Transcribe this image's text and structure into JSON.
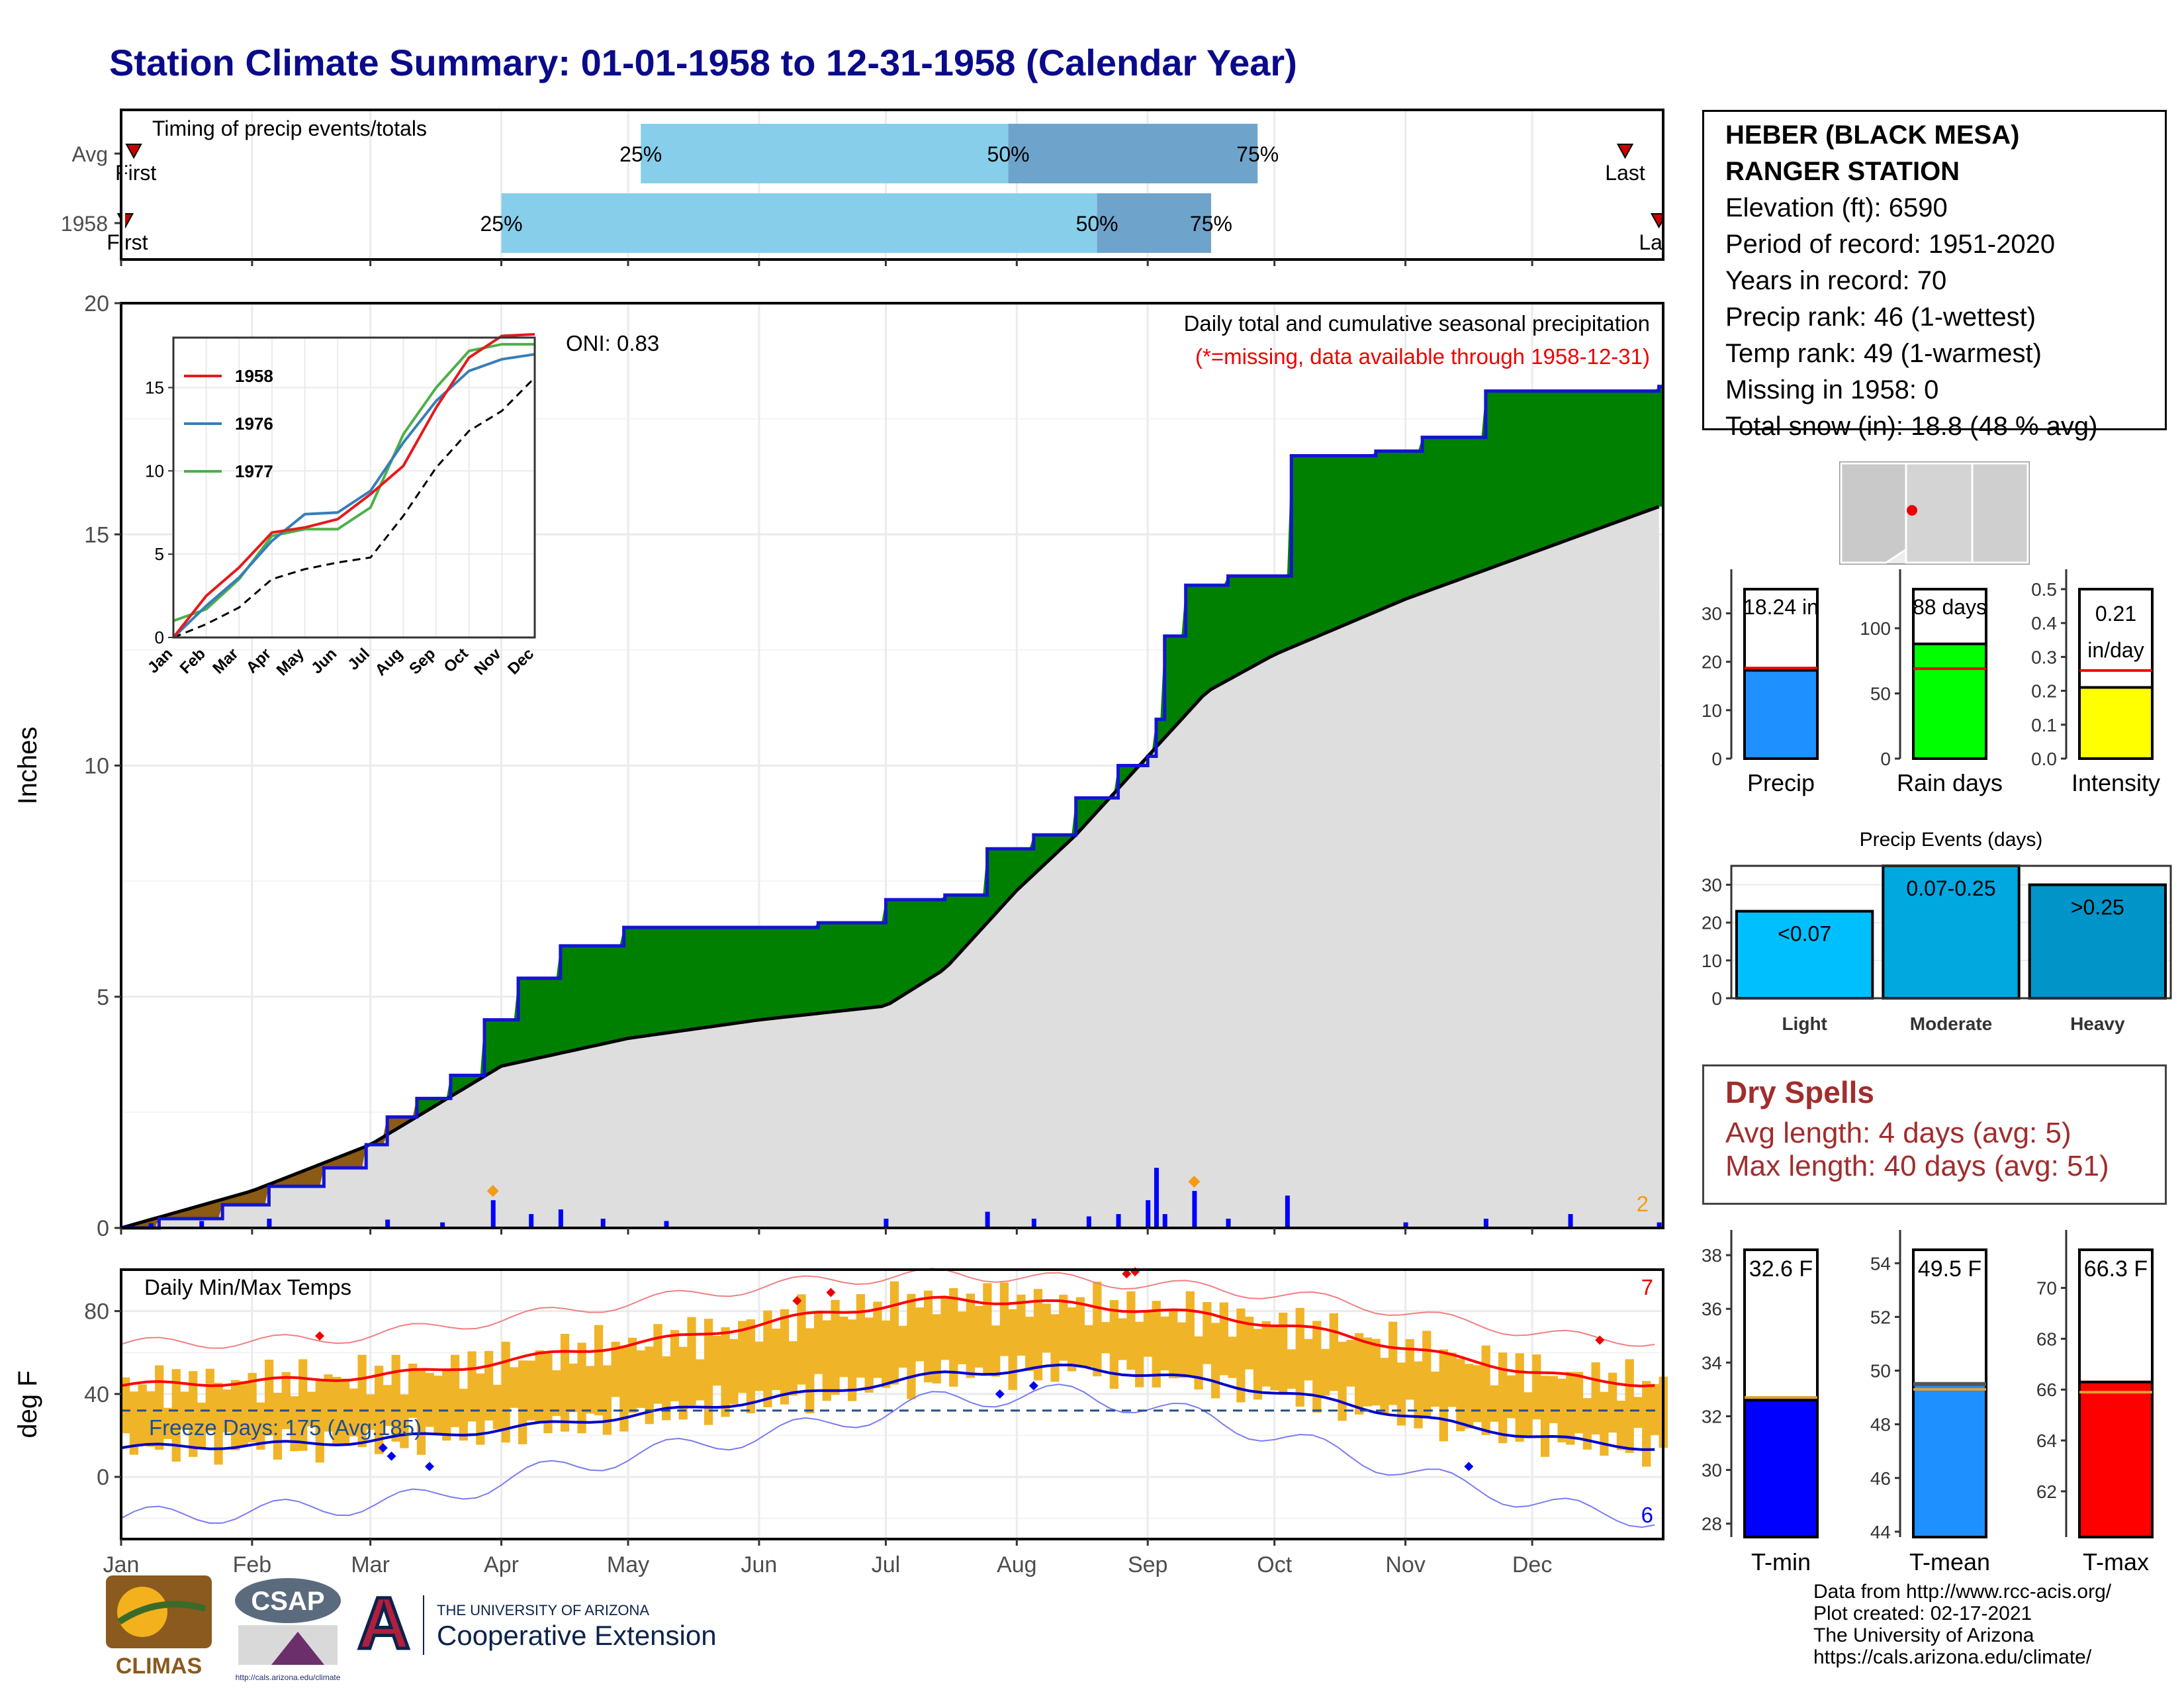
{
  "title": "Station Climate Summary: 01-01-1958 to 12-31-1958 (Calendar Year)",
  "station": {
    "name_line1": "HEBER (BLACK MESA)",
    "name_line2": "RANGER STATION",
    "elevation": "Elevation (ft): 6590",
    "period": "Period of record: 1951-2020",
    "years": "Years in record: 70",
    "precip_rank": "Precip rank: 46 (1-wettest)",
    "temp_rank": "Temp rank: 49 (1-warmest)",
    "missing": "Missing in 1958: 0",
    "snow": "Total snow (in): 18.8 (48 % avg)"
  },
  "timing": {
    "title": "Timing of precip events/totals",
    "rows": [
      "Avg",
      "1958"
    ],
    "first_label": "First",
    "last_label": "Last",
    "avg": {
      "first": "Jan 4",
      "p25": "May 4",
      "p50": "Jul 30",
      "p75": "Sep 27",
      "last": "Dec 23"
    },
    "y1958": {
      "first": "Jan 2",
      "p25": "Apr 1",
      "p50": "Aug 20",
      "p75": "Sep 16",
      "last": "Dec 31"
    },
    "pct_labels": [
      "25%",
      "50%",
      "75%"
    ]
  },
  "main_chart": {
    "ylabel": "Inches",
    "yticks": [
      "0",
      "5",
      "10",
      "15",
      "20"
    ],
    "months": [
      "Jan",
      "Feb",
      "Mar",
      "Apr",
      "May",
      "Jun",
      "Jul",
      "Aug",
      "Sep",
      "Oct",
      "Nov",
      "Dec"
    ],
    "label_right": "Daily total and cumulative seasonal precipitation",
    "label_missing": "(*=missing, data available through 1958-12-31)",
    "oni": "ONI: 0.83",
    "corner_count": "2"
  },
  "inset": {
    "legend": [
      "1958",
      "1976",
      "1977"
    ],
    "yticks": [
      "0",
      "5",
      "10",
      "15"
    ],
    "months": [
      "Jan",
      "Feb",
      "Mar",
      "Apr",
      "May",
      "Jun",
      "Jul",
      "Aug",
      "Sep",
      "Oct",
      "Nov",
      "Dec"
    ]
  },
  "temp_chart": {
    "ylabel": "deg F",
    "title": "Daily Min/Max Temps",
    "yticks": [
      "0",
      "40",
      "80"
    ],
    "freeze": "Freeze Days: 175 (Avg:185)",
    "count_hot": "7",
    "count_cold": "6"
  },
  "summary_bars": {
    "precip": {
      "label": "Precip",
      "value_text": "18.24 in",
      "yticks": [
        "0",
        "10",
        "20",
        "30"
      ]
    },
    "rain_days": {
      "label": "Rain days",
      "value_text": "88 days",
      "yticks": [
        "0",
        "50",
        "100"
      ]
    },
    "intensity": {
      "label": "Intensity",
      "value_text": "0.21",
      "value_unit": "in/day",
      "yticks": [
        "0.0",
        "0.1",
        "0.2",
        "0.3",
        "0.4",
        "0.5"
      ]
    }
  },
  "events": {
    "title": "Precip Events (days)",
    "yticks": [
      "0",
      "10",
      "20",
      "30"
    ],
    "cats": [
      "Light",
      "Moderate",
      "Heavy"
    ],
    "labels": [
      "<0.07",
      "0.07-0.25",
      ">0.25"
    ]
  },
  "dry_spells": {
    "title": "Dry Spells",
    "avg": "Avg length: 4 days (avg: 5)",
    "max": "Max length: 40 days (avg: 51)"
  },
  "temp_bars": {
    "tmin": {
      "label": "T-min",
      "value_text": "32.6 F",
      "yticks": [
        "28",
        "30",
        "32",
        "34",
        "36",
        "38"
      ]
    },
    "tmean": {
      "label": "T-mean",
      "value_text": "49.5 F",
      "yticks": [
        "44",
        "46",
        "48",
        "50",
        "52",
        "54"
      ]
    },
    "tmax": {
      "label": "T-max",
      "value_text": "66.3 F",
      "yticks": [
        "62",
        "64",
        "66",
        "68",
        "70"
      ]
    }
  },
  "logos": {
    "climas": "CLIMAS",
    "csap": "CSAP",
    "csap_url": "http://cals.arizona.edu/climate",
    "ua_small": "THE UNIVERSITY OF ARIZONA",
    "ua_big": "Cooperative Extension",
    "ua_letter": "A"
  },
  "credits": [
    "Data from http://www.rcc-acis.org/",
    "Plot created: 02-17-2021",
    "The University of Arizona",
    "https://cals.arizona.edu/climate/"
  ],
  "chart_data": [
    {
      "type": "area",
      "title": "Daily total and cumulative seasonal precipitation",
      "ylabel": "Inches",
      "ylim": [
        0,
        20
      ],
      "series": [
        {
          "name": "1958",
          "x": [
            "01-01",
            "01-10",
            "01-25",
            "02-05",
            "02-18",
            "02-28",
            "03-05",
            "03-12",
            "03-20",
            "03-28",
            "04-05",
            "04-15",
            "04-30",
            "05-15",
            "06-15",
            "07-01",
            "07-15",
            "07-25",
            "08-05",
            "08-15",
            "08-25",
            "09-01",
            "09-03",
            "09-05",
            "09-10",
            "09-20",
            "10-05",
            "10-25",
            "11-05",
            "11-20",
            "12-15",
            "12-31"
          ],
          "values": [
            0,
            0.2,
            0.5,
            0.9,
            1.3,
            1.8,
            2.4,
            2.8,
            3.3,
            4.5,
            5.4,
            6.1,
            6.5,
            6.5,
            6.6,
            7.1,
            7.2,
            8.2,
            8.5,
            9.3,
            10.0,
            10.2,
            11.0,
            12.8,
            13.9,
            14.1,
            16.7,
            16.8,
            17.1,
            18.1,
            18.1,
            18.2
          ]
        },
        {
          "name": "Avg",
          "x": [
            "01-01",
            "02-01",
            "03-01",
            "04-01",
            "05-01",
            "06-01",
            "07-01",
            "07-15",
            "08-01",
            "08-15",
            "09-01",
            "09-15",
            "10-01",
            "11-01",
            "12-01",
            "12-31"
          ],
          "values": [
            0,
            0.8,
            1.8,
            3.5,
            4.1,
            4.5,
            4.8,
            5.6,
            7.3,
            8.5,
            10.2,
            11.6,
            12.4,
            13.6,
            14.6,
            15.6
          ]
        }
      ],
      "daily_bars": [
        {
          "x": "01-08",
          "v": 0.1
        },
        {
          "x": "01-20",
          "v": 0.15
        },
        {
          "x": "02-05",
          "v": 0.2
        },
        {
          "x": "03-05",
          "v": 0.18
        },
        {
          "x": "03-18",
          "v": 0.12
        },
        {
          "x": "03-30",
          "v": 0.6
        },
        {
          "x": "04-08",
          "v": 0.3
        },
        {
          "x": "04-15",
          "v": 0.4
        },
        {
          "x": "04-25",
          "v": 0.2
        },
        {
          "x": "05-10",
          "v": 0.15
        },
        {
          "x": "07-01",
          "v": 0.2
        },
        {
          "x": "07-25",
          "v": 0.35
        },
        {
          "x": "08-05",
          "v": 0.2
        },
        {
          "x": "08-18",
          "v": 0.25
        },
        {
          "x": "08-25",
          "v": 0.3
        },
        {
          "x": "09-01",
          "v": 0.6
        },
        {
          "x": "09-03",
          "v": 1.3
        },
        {
          "x": "09-05",
          "v": 0.3
        },
        {
          "x": "09-12",
          "v": 0.8
        },
        {
          "x": "09-20",
          "v": 0.2
        },
        {
          "x": "10-04",
          "v": 0.7
        },
        {
          "x": "11-01",
          "v": 0.12
        },
        {
          "x": "11-20",
          "v": 0.2
        },
        {
          "x": "12-10",
          "v": 0.3
        },
        {
          "x": "12-31",
          "v": 0.12
        }
      ]
    },
    {
      "type": "line",
      "title": "",
      "xlabel": "",
      "ylim": [
        0,
        18
      ],
      "categories": [
        "Jan",
        "Feb",
        "Mar",
        "Apr",
        "May",
        "Jun",
        "Jul",
        "Aug",
        "Sep",
        "Oct",
        "Nov",
        "Dec"
      ],
      "series": [
        {
          "name": "1958",
          "values": [
            0,
            2.5,
            4.2,
            6.3,
            6.6,
            7.1,
            8.6,
            10.3,
            13.8,
            16.8,
            18.1,
            18.2
          ]
        },
        {
          "name": "1976",
          "values": [
            0,
            1.9,
            3.6,
            5.8,
            7.4,
            7.5,
            8.8,
            11.7,
            14.2,
            16.0,
            16.7,
            17.0
          ]
        },
        {
          "name": "1977",
          "values": [
            1.0,
            1.7,
            3.5,
            6.1,
            6.5,
            6.5,
            7.8,
            12.2,
            15.0,
            17.2,
            17.6,
            17.6
          ]
        },
        {
          "name": "Avg",
          "values": [
            0,
            0.8,
            1.8,
            3.5,
            4.1,
            4.5,
            4.8,
            7.3,
            10.2,
            12.4,
            13.6,
            15.6
          ]
        }
      ]
    },
    {
      "type": "line",
      "title": "Daily Min/Max Temps",
      "ylabel": "deg F",
      "ylim": [
        -30,
        100
      ],
      "categories": [
        "Jan",
        "Feb",
        "Mar",
        "Apr",
        "May",
        "Jun",
        "Jul",
        "Aug",
        "Sep",
        "Oct",
        "Nov",
        "Dec",
        "Dec31"
      ],
      "series": [
        {
          "name": "Avg max",
          "values": [
            44,
            47,
            51,
            60,
            68,
            79,
            86,
            83,
            78,
            69,
            56,
            46,
            45
          ]
        },
        {
          "name": "Avg min",
          "values": [
            14,
            16,
            20,
            26,
            33,
            41,
            50,
            53,
            46,
            36,
            24,
            16,
            14
          ]
        },
        {
          "name": "Record max",
          "values": [
            64,
            66,
            72,
            80,
            88,
            95,
            98,
            95,
            91,
            85,
            74,
            66,
            66
          ]
        },
        {
          "name": "Record min",
          "values": [
            -20,
            -15,
            -10,
            5,
            15,
            25,
            38,
            40,
            28,
            12,
            -5,
            -18,
            -20
          ]
        }
      ],
      "freeze_line": 32
    },
    {
      "type": "bar",
      "title": "",
      "categories": [
        "Precip"
      ],
      "values": [
        18.24
      ],
      "avg": [
        18.7
      ],
      "ylim": [
        0,
        35
      ]
    },
    {
      "type": "bar",
      "title": "",
      "categories": [
        "Rain days"
      ],
      "values": [
        88
      ],
      "avg": [
        69
      ],
      "ylim": [
        0,
        130
      ]
    },
    {
      "type": "bar",
      "title": "",
      "categories": [
        "Intensity"
      ],
      "values": [
        0.21
      ],
      "avg": [
        0.26
      ],
      "ylim": [
        0,
        0.5
      ]
    },
    {
      "type": "bar",
      "title": "Precip Events (days)",
      "categories": [
        "Light",
        "Moderate",
        "Heavy"
      ],
      "values": [
        23,
        35,
        30
      ],
      "ylim": [
        0,
        35
      ]
    },
    {
      "type": "bar",
      "title": "",
      "categories": [
        "T-min"
      ],
      "values": [
        32.6
      ],
      "avg": [
        32.7
      ],
      "ylim": [
        27.5,
        38.2
      ]
    },
    {
      "type": "bar",
      "title": "",
      "categories": [
        "T-mean"
      ],
      "values": [
        49.5
      ],
      "avg": [
        49.3
      ],
      "ylim": [
        43.8,
        54.5
      ]
    },
    {
      "type": "bar",
      "title": "",
      "categories": [
        "T-max"
      ],
      "values": [
        66.3
      ],
      "avg": [
        65.9
      ],
      "ylim": [
        60.2,
        71.5
      ]
    }
  ]
}
